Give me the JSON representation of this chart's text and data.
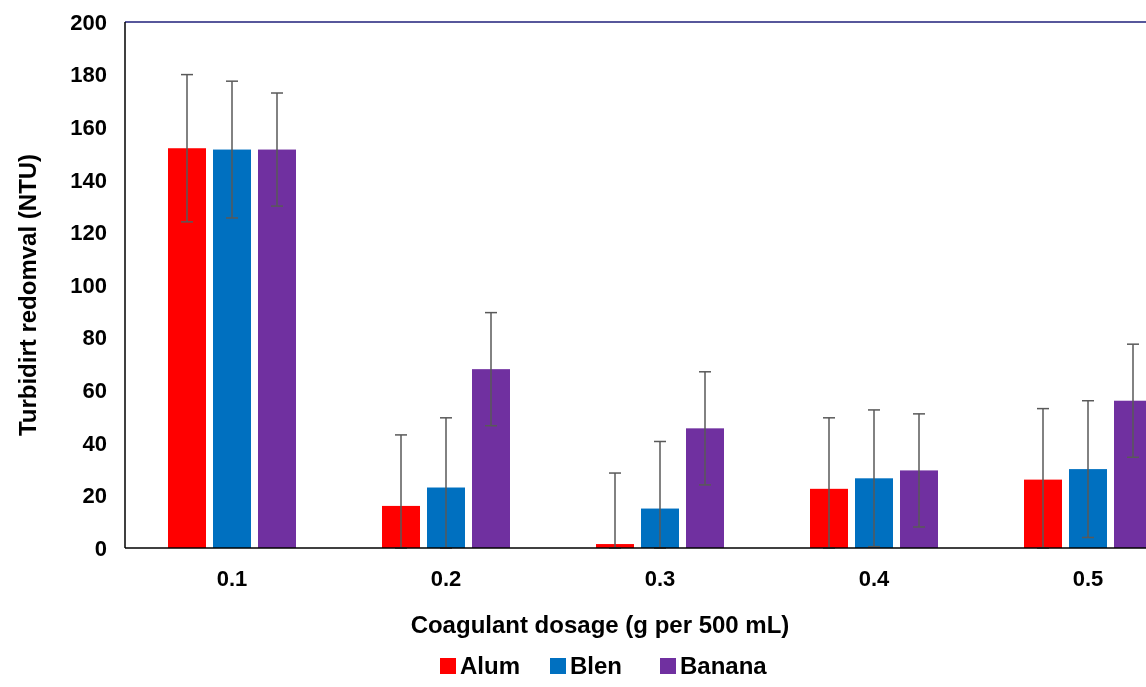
{
  "chart_data": {
    "type": "bar",
    "xlabel": "Coagulant dosage (g per 500 mL)",
    "ylabel": "Turbidirt redomval (NTU)",
    "categories": [
      "0.1",
      "0.2",
      "0.3",
      "0.4",
      "0.5"
    ],
    "series": [
      {
        "name": "Alum",
        "color": "#ff0000",
        "values": [
          152,
          16,
          1.5,
          22.5,
          26
        ],
        "errors": [
          28,
          [
            0,
            43
          ],
          [
            0,
            28.5
          ],
          [
            0,
            49.5
          ],
          [
            0,
            53
          ]
        ]
      },
      {
        "name": "Blen",
        "color": "#0070c0",
        "values": [
          151.5,
          23,
          15,
          26.5,
          30
        ],
        "errors": [
          26,
          [
            0,
            49.5
          ],
          [
            0,
            40.5
          ],
          26,
          26
        ]
      },
      {
        "name": "Banana",
        "color": "#7030a0",
        "values": [
          151.5,
          68,
          45.5,
          29.5,
          56
        ],
        "errors": [
          21.5,
          21.5,
          21.5,
          21.5,
          21.5
        ]
      }
    ],
    "ylim": [
      0,
      200
    ],
    "yticks": [
      0,
      20,
      40,
      60,
      80,
      100,
      120,
      140,
      160,
      180,
      200
    ],
    "grid": false,
    "legend": "bottom"
  }
}
